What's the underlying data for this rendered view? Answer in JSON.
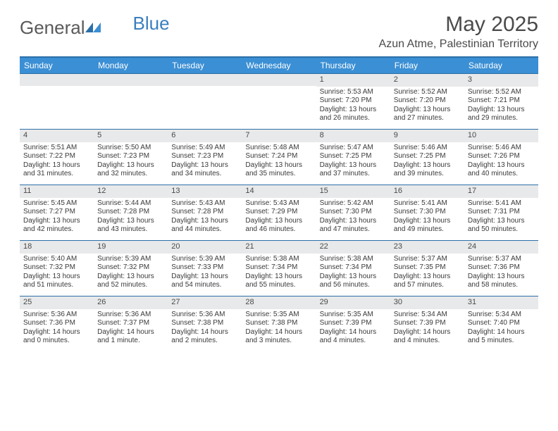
{
  "logo": {
    "text1": "General",
    "text2": "Blue"
  },
  "title": "May 2025",
  "location": "Azun Atme, Palestinian Territory",
  "header_bg": "#3b8fd4",
  "border_color": "#2b6fa8",
  "daynum_bg": "#e8e9ea",
  "weekdays": [
    "Sunday",
    "Monday",
    "Tuesday",
    "Wednesday",
    "Thursday",
    "Friday",
    "Saturday"
  ],
  "weeks": [
    [
      {
        "empty": true
      },
      {
        "empty": true
      },
      {
        "empty": true
      },
      {
        "empty": true
      },
      {
        "num": "1",
        "sunrise": "Sunrise: 5:53 AM",
        "sunset": "Sunset: 7:20 PM",
        "daylight": "Daylight: 13 hours and 26 minutes."
      },
      {
        "num": "2",
        "sunrise": "Sunrise: 5:52 AM",
        "sunset": "Sunset: 7:20 PM",
        "daylight": "Daylight: 13 hours and 27 minutes."
      },
      {
        "num": "3",
        "sunrise": "Sunrise: 5:52 AM",
        "sunset": "Sunset: 7:21 PM",
        "daylight": "Daylight: 13 hours and 29 minutes."
      }
    ],
    [
      {
        "num": "4",
        "sunrise": "Sunrise: 5:51 AM",
        "sunset": "Sunset: 7:22 PM",
        "daylight": "Daylight: 13 hours and 31 minutes."
      },
      {
        "num": "5",
        "sunrise": "Sunrise: 5:50 AM",
        "sunset": "Sunset: 7:23 PM",
        "daylight": "Daylight: 13 hours and 32 minutes."
      },
      {
        "num": "6",
        "sunrise": "Sunrise: 5:49 AM",
        "sunset": "Sunset: 7:23 PM",
        "daylight": "Daylight: 13 hours and 34 minutes."
      },
      {
        "num": "7",
        "sunrise": "Sunrise: 5:48 AM",
        "sunset": "Sunset: 7:24 PM",
        "daylight": "Daylight: 13 hours and 35 minutes."
      },
      {
        "num": "8",
        "sunrise": "Sunrise: 5:47 AM",
        "sunset": "Sunset: 7:25 PM",
        "daylight": "Daylight: 13 hours and 37 minutes."
      },
      {
        "num": "9",
        "sunrise": "Sunrise: 5:46 AM",
        "sunset": "Sunset: 7:25 PM",
        "daylight": "Daylight: 13 hours and 39 minutes."
      },
      {
        "num": "10",
        "sunrise": "Sunrise: 5:46 AM",
        "sunset": "Sunset: 7:26 PM",
        "daylight": "Daylight: 13 hours and 40 minutes."
      }
    ],
    [
      {
        "num": "11",
        "sunrise": "Sunrise: 5:45 AM",
        "sunset": "Sunset: 7:27 PM",
        "daylight": "Daylight: 13 hours and 42 minutes."
      },
      {
        "num": "12",
        "sunrise": "Sunrise: 5:44 AM",
        "sunset": "Sunset: 7:28 PM",
        "daylight": "Daylight: 13 hours and 43 minutes."
      },
      {
        "num": "13",
        "sunrise": "Sunrise: 5:43 AM",
        "sunset": "Sunset: 7:28 PM",
        "daylight": "Daylight: 13 hours and 44 minutes."
      },
      {
        "num": "14",
        "sunrise": "Sunrise: 5:43 AM",
        "sunset": "Sunset: 7:29 PM",
        "daylight": "Daylight: 13 hours and 46 minutes."
      },
      {
        "num": "15",
        "sunrise": "Sunrise: 5:42 AM",
        "sunset": "Sunset: 7:30 PM",
        "daylight": "Daylight: 13 hours and 47 minutes."
      },
      {
        "num": "16",
        "sunrise": "Sunrise: 5:41 AM",
        "sunset": "Sunset: 7:30 PM",
        "daylight": "Daylight: 13 hours and 49 minutes."
      },
      {
        "num": "17",
        "sunrise": "Sunrise: 5:41 AM",
        "sunset": "Sunset: 7:31 PM",
        "daylight": "Daylight: 13 hours and 50 minutes."
      }
    ],
    [
      {
        "num": "18",
        "sunrise": "Sunrise: 5:40 AM",
        "sunset": "Sunset: 7:32 PM",
        "daylight": "Daylight: 13 hours and 51 minutes."
      },
      {
        "num": "19",
        "sunrise": "Sunrise: 5:39 AM",
        "sunset": "Sunset: 7:32 PM",
        "daylight": "Daylight: 13 hours and 52 minutes."
      },
      {
        "num": "20",
        "sunrise": "Sunrise: 5:39 AM",
        "sunset": "Sunset: 7:33 PM",
        "daylight": "Daylight: 13 hours and 54 minutes."
      },
      {
        "num": "21",
        "sunrise": "Sunrise: 5:38 AM",
        "sunset": "Sunset: 7:34 PM",
        "daylight": "Daylight: 13 hours and 55 minutes."
      },
      {
        "num": "22",
        "sunrise": "Sunrise: 5:38 AM",
        "sunset": "Sunset: 7:34 PM",
        "daylight": "Daylight: 13 hours and 56 minutes."
      },
      {
        "num": "23",
        "sunrise": "Sunrise: 5:37 AM",
        "sunset": "Sunset: 7:35 PM",
        "daylight": "Daylight: 13 hours and 57 minutes."
      },
      {
        "num": "24",
        "sunrise": "Sunrise: 5:37 AM",
        "sunset": "Sunset: 7:36 PM",
        "daylight": "Daylight: 13 hours and 58 minutes."
      }
    ],
    [
      {
        "num": "25",
        "sunrise": "Sunrise: 5:36 AM",
        "sunset": "Sunset: 7:36 PM",
        "daylight": "Daylight: 14 hours and 0 minutes."
      },
      {
        "num": "26",
        "sunrise": "Sunrise: 5:36 AM",
        "sunset": "Sunset: 7:37 PM",
        "daylight": "Daylight: 14 hours and 1 minute."
      },
      {
        "num": "27",
        "sunrise": "Sunrise: 5:36 AM",
        "sunset": "Sunset: 7:38 PM",
        "daylight": "Daylight: 14 hours and 2 minutes."
      },
      {
        "num": "28",
        "sunrise": "Sunrise: 5:35 AM",
        "sunset": "Sunset: 7:38 PM",
        "daylight": "Daylight: 14 hours and 3 minutes."
      },
      {
        "num": "29",
        "sunrise": "Sunrise: 5:35 AM",
        "sunset": "Sunset: 7:39 PM",
        "daylight": "Daylight: 14 hours and 4 minutes."
      },
      {
        "num": "30",
        "sunrise": "Sunrise: 5:34 AM",
        "sunset": "Sunset: 7:39 PM",
        "daylight": "Daylight: 14 hours and 4 minutes."
      },
      {
        "num": "31",
        "sunrise": "Sunrise: 5:34 AM",
        "sunset": "Sunset: 7:40 PM",
        "daylight": "Daylight: 14 hours and 5 minutes."
      }
    ]
  ]
}
